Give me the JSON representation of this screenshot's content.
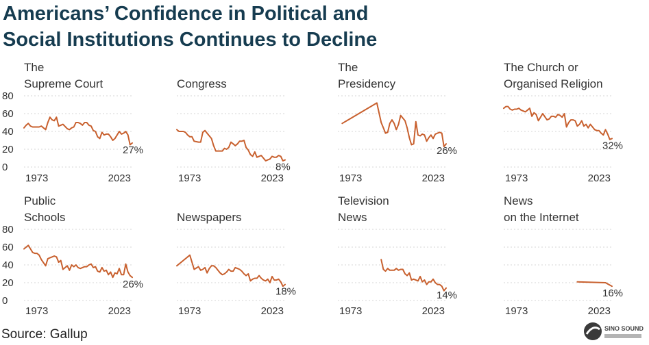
{
  "title": {
    "line1": "Americans’ Confidence in Political and",
    "line2": "Social Institutions Continues to Decline"
  },
  "source": "Source: Gallup",
  "logo_text": "SINO SOUND",
  "colors": {
    "line": "#c8602e",
    "grid": "#d6d6d6",
    "title": "#163c50"
  },
  "chart_data": [
    {
      "type": "line",
      "title": [
        "The",
        "Supreme Court"
      ],
      "x_ticks": [
        "1973",
        "2023"
      ],
      "yticks": [
        "0",
        "20",
        "40",
        "60",
        "80"
      ],
      "ylim": [
        0,
        80
      ],
      "end_label": "27%",
      "x": [
        1973,
        1974,
        1975,
        1976,
        1977,
        1978,
        1979,
        1980,
        1981,
        1983,
        1984,
        1985,
        1986,
        1987,
        1988,
        1989,
        1990,
        1991,
        1993,
        1994,
        1995,
        1996,
        1997,
        1998,
        1999,
        2000,
        2001,
        2002,
        2003,
        2004,
        2005,
        2006,
        2007,
        2008,
        2009,
        2010,
        2011,
        2012,
        2013,
        2014,
        2015,
        2016,
        2017,
        2018,
        2019,
        2020,
        2021,
        2022,
        2023
      ],
      "y": [
        44,
        47,
        49,
        46,
        45,
        45,
        45,
        45,
        46,
        42,
        50,
        56,
        53,
        52,
        56,
        46,
        47,
        48,
        43,
        42,
        44,
        45,
        50,
        50,
        49,
        47,
        50,
        50,
        47,
        46,
        41,
        40,
        34,
        32,
        39,
        36,
        37,
        37,
        34,
        30,
        32,
        36,
        40,
        37,
        38,
        40,
        36,
        25,
        27
      ]
    },
    {
      "type": "line",
      "title": [
        "",
        "Congress"
      ],
      "x_ticks": [
        "1973",
        "2023"
      ],
      "yticks": [],
      "ylim": [
        0,
        80
      ],
      "end_label": "8%",
      "x": [
        1973,
        1974,
        1975,
        1976,
        1977,
        1978,
        1979,
        1980,
        1981,
        1983,
        1984,
        1985,
        1986,
        1987,
        1988,
        1989,
        1990,
        1991,
        1993,
        1994,
        1995,
        1996,
        1997,
        1998,
        1999,
        2000,
        2001,
        2002,
        2003,
        2004,
        2005,
        2006,
        2007,
        2008,
        2009,
        2010,
        2011,
        2012,
        2013,
        2014,
        2015,
        2016,
        2017,
        2018,
        2019,
        2020,
        2021,
        2022,
        2023
      ],
      "y": [
        42,
        40,
        40,
        40,
        39,
        36,
        34,
        34,
        29,
        28,
        28,
        39,
        41,
        38,
        35,
        32,
        24,
        18,
        18,
        18,
        21,
        20,
        22,
        28,
        26,
        24,
        26,
        29,
        29,
        30,
        22,
        19,
        14,
        12,
        17,
        11,
        12,
        13,
        10,
        7,
        8,
        9,
        12,
        11,
        11,
        13,
        12,
        7,
        8
      ]
    },
    {
      "type": "line",
      "title": [
        "The",
        "Presidency"
      ],
      "x_ticks": [
        "1973",
        "2023"
      ],
      "yticks": [],
      "ylim": [
        0,
        80
      ],
      "end_label": "26%",
      "x": [
        1975,
        1991,
        1993,
        1994,
        1995,
        1996,
        1997,
        1998,
        1999,
        2000,
        2001,
        2002,
        2003,
        2004,
        2005,
        2006,
        2007,
        2008,
        2009,
        2010,
        2011,
        2012,
        2013,
        2014,
        2015,
        2016,
        2017,
        2018,
        2019,
        2020,
        2021,
        2022,
        2023
      ],
      "y": [
        49,
        72,
        50,
        44,
        38,
        39,
        49,
        53,
        49,
        42,
        48,
        58,
        55,
        52,
        44,
        33,
        25,
        26,
        51,
        36,
        35,
        37,
        36,
        29,
        33,
        36,
        32,
        37,
        38,
        39,
        38,
        23,
        26
      ]
    },
    {
      "type": "line",
      "title": [
        "The Church or",
        "Organised Religion"
      ],
      "x_ticks": [
        "1973",
        "2023"
      ],
      "yticks": [],
      "ylim": [
        0,
        80
      ],
      "end_label": "32%",
      "x": [
        1973,
        1974,
        1975,
        1976,
        1977,
        1978,
        1979,
        1980,
        1981,
        1983,
        1984,
        1985,
        1986,
        1987,
        1988,
        1989,
        1990,
        1991,
        1993,
        1994,
        1995,
        1996,
        1997,
        1998,
        1999,
        2000,
        2001,
        2002,
        2003,
        2004,
        2005,
        2006,
        2007,
        2008,
        2009,
        2010,
        2011,
        2012,
        2013,
        2014,
        2015,
        2016,
        2017,
        2018,
        2019,
        2020,
        2021,
        2022,
        2023
      ],
      "y": [
        66,
        68,
        68,
        65,
        64,
        65,
        65,
        66,
        64,
        62,
        64,
        66,
        57,
        61,
        59,
        52,
        56,
        60,
        53,
        54,
        57,
        57,
        56,
        59,
        58,
        56,
        60,
        45,
        50,
        53,
        53,
        52,
        46,
        48,
        52,
        46,
        48,
        44,
        48,
        45,
        42,
        41,
        41,
        38,
        36,
        42,
        37,
        31,
        32
      ]
    },
    {
      "type": "line",
      "title": [
        "Public",
        "Schools"
      ],
      "x_ticks": [
        "1973",
        "2023"
      ],
      "yticks": [
        "0",
        "20",
        "40",
        "60",
        "80"
      ],
      "ylim": [
        0,
        80
      ],
      "end_label": "26%",
      "x": [
        1973,
        1974,
        1975,
        1976,
        1977,
        1978,
        1979,
        1980,
        1981,
        1983,
        1984,
        1985,
        1986,
        1987,
        1988,
        1989,
        1990,
        1991,
        1993,
        1994,
        1995,
        1996,
        1997,
        1998,
        1999,
        2000,
        2001,
        2002,
        2003,
        2004,
        2005,
        2006,
        2007,
        2008,
        2009,
        2010,
        2011,
        2012,
        2013,
        2014,
        2015,
        2016,
        2017,
        2018,
        2019,
        2020,
        2021,
        2022,
        2023
      ],
      "y": [
        58,
        60,
        62,
        58,
        54,
        53,
        53,
        51,
        46,
        39,
        47,
        48,
        49,
        50,
        49,
        43,
        45,
        35,
        39,
        34,
        40,
        38,
        40,
        37,
        36,
        37,
        38,
        38,
        40,
        41,
        37,
        38,
        33,
        32,
        37,
        33,
        34,
        29,
        32,
        26,
        31,
        30,
        36,
        29,
        29,
        41,
        32,
        28,
        26
      ]
    },
    {
      "type": "line",
      "title": [
        "",
        "Newspapers"
      ],
      "x_ticks": [
        "1973",
        "2023"
      ],
      "yticks": [],
      "ylim": [
        0,
        80
      ],
      "end_label": "18%",
      "x": [
        1973,
        1979,
        1981,
        1983,
        1984,
        1985,
        1986,
        1987,
        1988,
        1989,
        1990,
        1991,
        1993,
        1994,
        1995,
        1996,
        1997,
        1998,
        1999,
        2000,
        2001,
        2002,
        2003,
        2004,
        2005,
        2006,
        2007,
        2008,
        2009,
        2010,
        2011,
        2012,
        2013,
        2014,
        2015,
        2016,
        2017,
        2018,
        2019,
        2020,
        2021,
        2022,
        2023
      ],
      "y": [
        39,
        51,
        35,
        38,
        34,
        35,
        37,
        31,
        36,
        39,
        39,
        37,
        31,
        29,
        30,
        32,
        35,
        33,
        33,
        37,
        36,
        35,
        33,
        30,
        28,
        30,
        22,
        24,
        25,
        25,
        28,
        25,
        23,
        22,
        24,
        20,
        27,
        23,
        23,
        24,
        21,
        16,
        18
      ]
    },
    {
      "type": "line",
      "title": [
        "Television",
        "News"
      ],
      "x_ticks": [
        "1973",
        "2023"
      ],
      "yticks": [],
      "ylim": [
        0,
        80
      ],
      "end_label": "14%",
      "x": [
        1993,
        1994,
        1995,
        1996,
        1997,
        1998,
        1999,
        2000,
        2001,
        2002,
        2003,
        2004,
        2005,
        2006,
        2007,
        2008,
        2009,
        2010,
        2011,
        2012,
        2013,
        2014,
        2015,
        2016,
        2017,
        2018,
        2019,
        2020,
        2021,
        2022,
        2023
      ],
      "y": [
        46,
        35,
        33,
        36,
        34,
        34,
        34,
        36,
        34,
        35,
        35,
        30,
        28,
        31,
        23,
        24,
        23,
        22,
        27,
        21,
        23,
        18,
        21,
        21,
        24,
        20,
        18,
        18,
        16,
        11,
        14
      ]
    },
    {
      "type": "line",
      "title": [
        "News",
        "on the Internet"
      ],
      "x_ticks": [
        "1973",
        "2023"
      ],
      "yticks": [],
      "ylim": [
        0,
        80
      ],
      "end_label": "16%",
      "x": [
        2007,
        2020,
        2023
      ],
      "y": [
        21,
        20,
        16
      ]
    }
  ]
}
